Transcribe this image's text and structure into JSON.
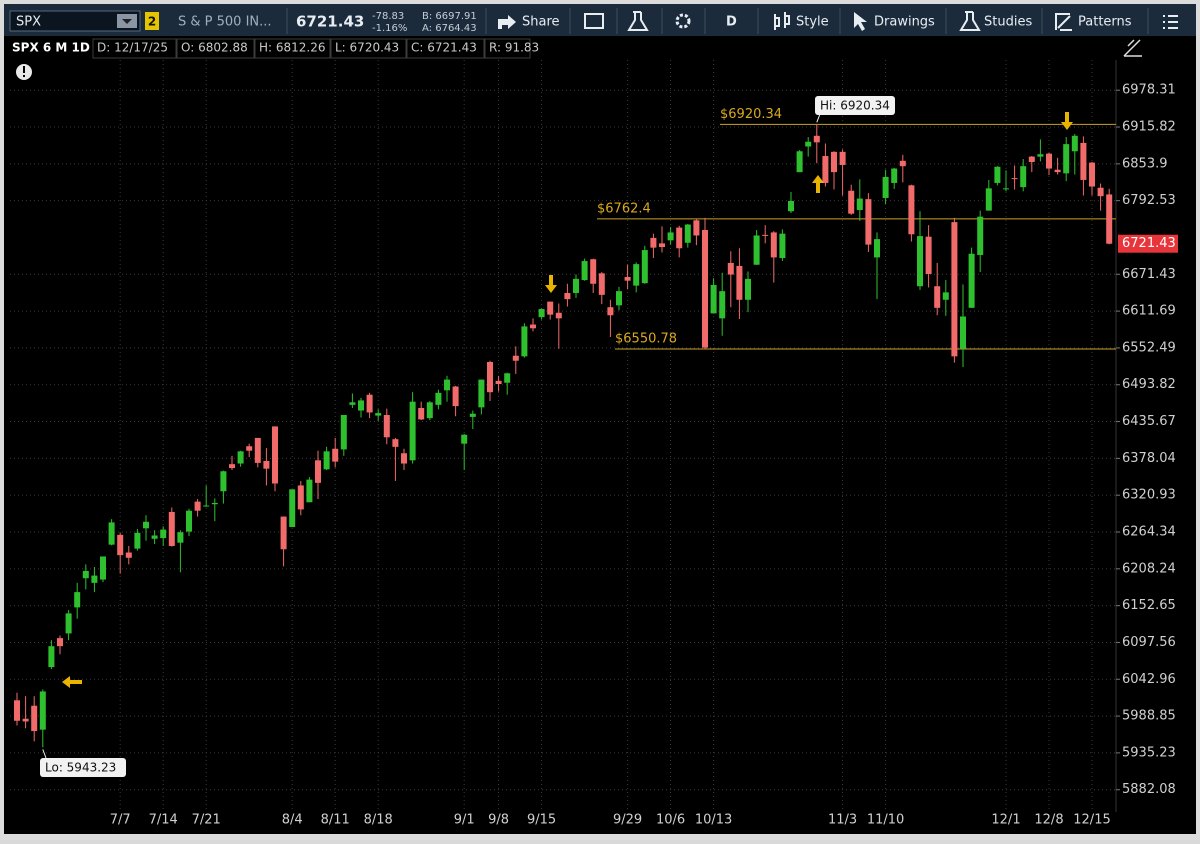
{
  "toolbar": {
    "symbol": "SPX",
    "badge": "2",
    "description": "S & P 500 IN...",
    "last": "6721.43",
    "change": "-78.83",
    "change_pct": "-1.16%",
    "bid": "B: 6697.91",
    "ask": "A: 6764.43",
    "share": "Share",
    "period": "D",
    "style": "Style",
    "drawings": "Drawings",
    "studies": "Studies",
    "patterns": "Patterns"
  },
  "info_bar": {
    "title": "SPX 6 M 1D",
    "date": "D: 12/17/25",
    "open": "O: 6802.88",
    "high": "H: 6812.26",
    "low": "L: 6720.43",
    "close": "C: 6721.43",
    "range": "R: 91.83"
  },
  "chart_data": {
    "type": "candlestick",
    "log_scale": true,
    "grid": true,
    "up_color": "#2ec02e",
    "down_color": "#f26b6b",
    "categories": [
      null,
      null,
      null,
      null,
      null,
      null,
      null,
      null,
      null,
      null,
      null,
      null,
      "7/7",
      null,
      null,
      null,
      null,
      "7/14",
      null,
      null,
      null,
      null,
      "7/21",
      null,
      null,
      null,
      null,
      null,
      null,
      null,
      null,
      null,
      "8/4",
      null,
      null,
      null,
      null,
      "8/11",
      null,
      null,
      null,
      null,
      "8/18",
      null,
      null,
      null,
      null,
      null,
      null,
      null,
      null,
      null,
      "9/1",
      null,
      null,
      null,
      "9/8",
      null,
      null,
      null,
      null,
      "9/15",
      null,
      null,
      null,
      null,
      null,
      null,
      null,
      null,
      null,
      "9/29",
      null,
      null,
      null,
      null,
      "10/6",
      null,
      null,
      null,
      null,
      "10/13",
      null,
      null,
      null,
      null,
      null,
      null,
      null,
      null,
      null,
      null,
      null,
      null,
      null,
      null,
      "11/3",
      null,
      null,
      null,
      null,
      "11/10",
      null,
      null,
      null,
      null,
      null,
      null,
      null,
      null,
      null,
      null,
      null,
      null,
      null,
      "12/1",
      null,
      null,
      null,
      null,
      "12/8",
      null,
      null,
      null,
      null,
      "12/15",
      null,
      null
    ],
    "open": [
      6012,
      5985,
      6004,
      5969,
      6061,
      6104,
      6111,
      6150,
      6194,
      6187,
      6192,
      6245,
      6260,
      6233,
      6239,
      6270,
      6254,
      6255,
      6295,
      6248,
      6265,
      6311,
      6304,
      6307,
      6327,
      6369,
      6370,
      6397,
      6410,
      6374,
      6428,
      6288,
      6272,
      6336,
      6310,
      6375,
      6361,
      6393,
      6392,
      6462,
      6453,
      6478,
      6445,
      6446,
      6408,
      6386,
      6375,
      6457,
      6441,
      6462,
      6485,
      6491,
      6401,
      6443,
      6458,
      6530,
      6500,
      6497,
      6540,
      6539,
      6590,
      6602,
      6627,
      6609,
      6641,
      6641,
      6662,
      6696,
      6673,
      6618,
      6621,
      6667,
      6653,
      6657,
      6731,
      6722,
      6727,
      6748,
      6723,
      6760,
      6744,
      6608,
      6600,
      6690,
      6685,
      6630,
      6687,
      6736,
      6740,
      6698,
      6775,
      6840,
      6883,
      6901,
      6867,
      6874,
      6874,
      6809,
      6777,
      6795,
      6699,
      6797,
      6822,
      6859,
      6818,
      6652,
      6733,
      6652,
      6630,
      6757,
      6551,
      6617,
      6703,
      6776,
      6822,
      6812,
      6830,
      6815,
      6866,
      6866,
      6871,
      6844,
      6838,
      6875,
      6889,
      6856,
      6814,
      6802.88
    ],
    "high": [
      6023,
      6018,
      6018,
      6028,
      6101,
      6108,
      6146,
      6187,
      6215,
      6211,
      6227,
      6284,
      6263,
      6243,
      6269,
      6290,
      6267,
      6273,
      6302,
      6267,
      6300,
      6315,
      6336,
      6316,
      6359,
      6382,
      6390,
      6401,
      6410,
      6394,
      6428,
      6288,
      6330,
      6343,
      6349,
      6390,
      6396,
      6410,
      6446,
      6480,
      6473,
      6481,
      6455,
      6456,
      6410,
      6393,
      6482,
      6467,
      6468,
      6486,
      6508,
      6492,
      6416,
      6453,
      6502,
      6532,
      6508,
      6513,
      6555,
      6592,
      6600,
      6616,
      6627,
      6624,
      6656,
      6671,
      6697,
      6697,
      6675,
      6630,
      6651,
      6687,
      6691,
      6718,
      6738,
      6750,
      6749,
      6751,
      6754,
      6762.4,
      6764,
      6665,
      6674,
      6709,
      6714,
      6676,
      6744,
      6752,
      6742,
      6745,
      6807,
      6877,
      6899,
      6920.34,
      6888,
      6875,
      6878,
      6819,
      6828,
      6805,
      6740,
      6844,
      6847,
      6869,
      6819,
      6775,
      6752,
      6690,
      6662,
      6764,
      6655,
      6715,
      6776,
      6827,
      6850,
      6843,
      6851,
      6862,
      6867,
      6895,
      6872,
      6864,
      6899,
      6904,
      6900,
      6857,
      6821,
      6812.26
    ],
    "low": [
      5975,
      5971,
      5952,
      5943.23,
      6058,
      6080,
      6101,
      6133,
      6177,
      6173,
      6188,
      6244,
      6201,
      6215,
      6236,
      6251,
      6246,
      6243,
      6242,
      6203,
      6258,
      6288,
      6303,
      6281,
      6308,
      6360,
      6365,
      6380,
      6364,
      6336,
      6327,
      6212,
      6272,
      6290,
      6310,
      6315,
      6360,
      6364,
      6382,
      6457,
      6442,
      6441,
      6437,
      6400,
      6343,
      6360,
      6370,
      6438,
      6438,
      6455,
      6467,
      6444,
      6360,
      6424,
      6447,
      6468,
      6483,
      6478,
      6511,
      6537,
      6579,
      6598,
      6598,
      6551,
      6619,
      6633,
      6661,
      6641,
      6623,
      6570,
      6613,
      6647,
      6642,
      6656,
      6698,
      6707,
      6720,
      6699,
      6715,
      6719,
      6550.78,
      6608,
      6572,
      6618,
      6599,
      6610,
      6687,
      6722,
      6658,
      6693,
      6772,
      6840,
      6866,
      6855,
      6816,
      6811,
      6801,
      6769,
      6759,
      6708,
      6631,
      6787,
      6812,
      6823,
      6725,
      6646,
      6650,
      6605,
      6604,
      6529,
      6521.92,
      6617,
      6675,
      6776,
      6818,
      6808,
      6811,
      6808,
      6840,
      6858,
      6835,
      6836,
      6825,
      6836,
      6801,
      6801,
      6776,
      6720.43
    ],
    "close": [
      5982,
      5981,
      5967,
      6025,
      6092,
      6092,
      6141,
      6173,
      6205,
      6198,
      6227,
      6279,
      6229,
      6225,
      6263,
      6280,
      6259,
      6268,
      6243,
      6264,
      6297,
      6297,
      6305,
      6309,
      6358,
      6363,
      6389,
      6390,
      6371,
      6362,
      6339,
      6238,
      6330,
      6299,
      6345,
      6340,
      6389,
      6373,
      6446,
      6466,
      6469,
      6450,
      6449,
      6411,
      6396,
      6370,
      6467,
      6439,
      6466,
      6481,
      6502,
      6460,
      6415,
      6448,
      6502,
      6482,
      6495,
      6512,
      6532,
      6587,
      6584,
      6615,
      6606,
      6600,
      6631,
      6664,
      6693,
      6656,
      6638,
      6605,
      6644,
      6661,
      6688,
      6711,
      6715,
      6716,
      6740,
      6714,
      6753,
      6735,
      6553,
      6654,
      6644,
      6671,
      6630,
      6664,
      6735,
      6735,
      6699,
      6738,
      6792,
      6875,
      6891,
      6890,
      6822,
      6840,
      6852,
      6771,
      6796,
      6720,
      6729,
      6832,
      6846,
      6850,
      6737,
      6734,
      6672,
      6617,
      6642,
      6539,
      6603,
      6705,
      6766,
      6813,
      6849,
      6813,
      6829,
      6850,
      6857,
      6870,
      6846,
      6840,
      6887,
      6901,
      6827,
      6816,
      6800,
      6721.43
    ],
    "ylim": [
      5853,
      7030
    ],
    "yticks": [
      5882.08,
      5935.23,
      5988.85,
      6042.96,
      6097.56,
      6152.65,
      6208.24,
      6264.34,
      6320.93,
      6378.04,
      6435.67,
      6493.82,
      6552.49,
      6611.69,
      6671.43,
      6792.53,
      6853.9,
      6915.82,
      6978.31
    ],
    "price_lines": [
      {
        "value": 6920.34,
        "label": "$6920.34"
      },
      {
        "value": 6762.4,
        "label": "$6762.4"
      },
      {
        "value": 6550.78,
        "label": "$6550.78"
      }
    ],
    "hi_label": "Hi: 6920.34",
    "lo_label": "Lo: 5943.23",
    "last_price": 6721.43
  }
}
